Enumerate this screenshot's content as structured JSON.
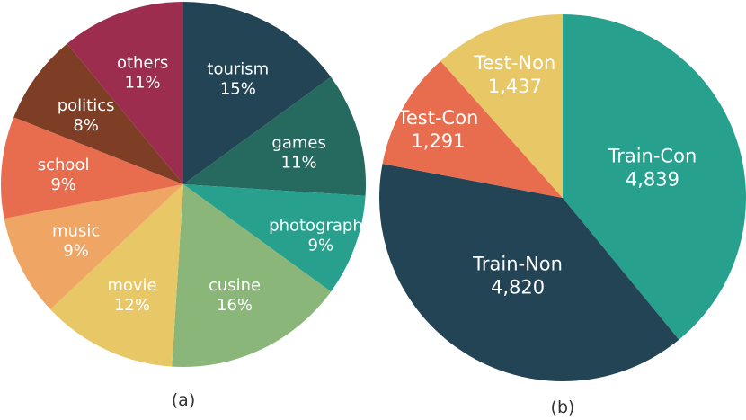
{
  "chart_data": [
    {
      "type": "pie",
      "caption": "(a)",
      "slices": [
        {
          "label": "tourism",
          "value_label": "15%",
          "value": 15,
          "color": "#234455"
        },
        {
          "label": "games",
          "value_label": "11%",
          "value": 11,
          "color": "#25695f"
        },
        {
          "label": "photography",
          "value_label": "9%",
          "value": 9,
          "color": "#27a08e"
        },
        {
          "label": "cusine",
          "value_label": "16%",
          "value": 16,
          "color": "#8ab679"
        },
        {
          "label": "movie",
          "value_label": "12%",
          "value": 12,
          "color": "#e8c767"
        },
        {
          "label": "music",
          "value_label": "9%",
          "value": 9,
          "color": "#efa564"
        },
        {
          "label": "school",
          "value_label": "9%",
          "value": 9,
          "color": "#e86d4e"
        },
        {
          "label": "politics",
          "value_label": "8%",
          "value": 8,
          "color": "#7e3d25"
        },
        {
          "label": "others",
          "value_label": "11%",
          "value": 11,
          "color": "#9c2d4f"
        }
      ]
    },
    {
      "type": "pie",
      "caption": "(b)",
      "slices": [
        {
          "label": "Train-Con",
          "value_label": "4,839",
          "value": 4839,
          "color": "#27a08e"
        },
        {
          "label": "Train-Non",
          "value_label": "4,820",
          "value": 4820,
          "color": "#234455"
        },
        {
          "label": "Test-Con",
          "value_label": "1,291",
          "value": 1291,
          "color": "#e86d4e"
        },
        {
          "label": "Test-Non",
          "value_label": "1,437",
          "value": 1437,
          "color": "#e8c767"
        }
      ]
    }
  ]
}
